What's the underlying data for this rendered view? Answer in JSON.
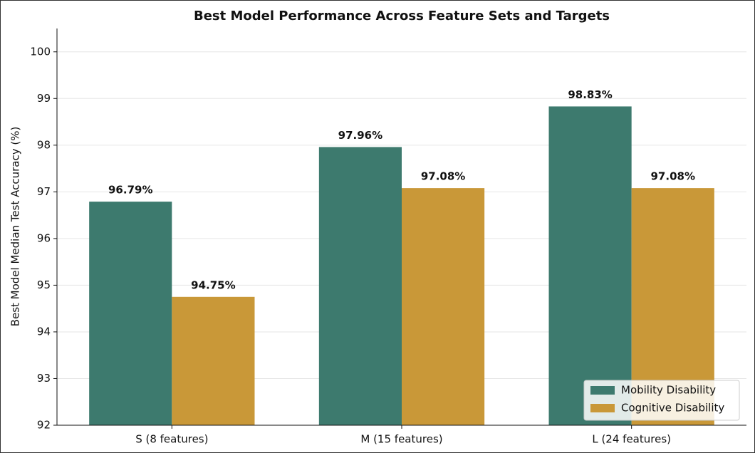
{
  "chart_data": {
    "type": "bar",
    "title": "Best Model Performance Across Feature Sets and Targets",
    "y_label": "Best Model Median Test Accuracy (%)",
    "categories": [
      "S (8 features)",
      "M (15 features)",
      "L (24 features)"
    ],
    "series": [
      {
        "name": "Mobility Disability",
        "color": "#3d7a6e",
        "values": [
          96.79,
          97.96,
          98.83
        ],
        "value_labels": [
          "96.79%",
          "97.96%",
          "98.83%"
        ]
      },
      {
        "name": "Cognitive Disability",
        "color": "#c99838",
        "values": [
          94.75,
          97.08,
          97.08
        ],
        "value_labels": [
          "94.75%",
          "97.08%",
          "97.08%"
        ]
      }
    ],
    "ylim": [
      92,
      100.5
    ],
    "yticks": [
      92,
      93,
      94,
      95,
      96,
      97,
      98,
      99,
      100
    ],
    "grid": true,
    "legend": "lower right"
  }
}
